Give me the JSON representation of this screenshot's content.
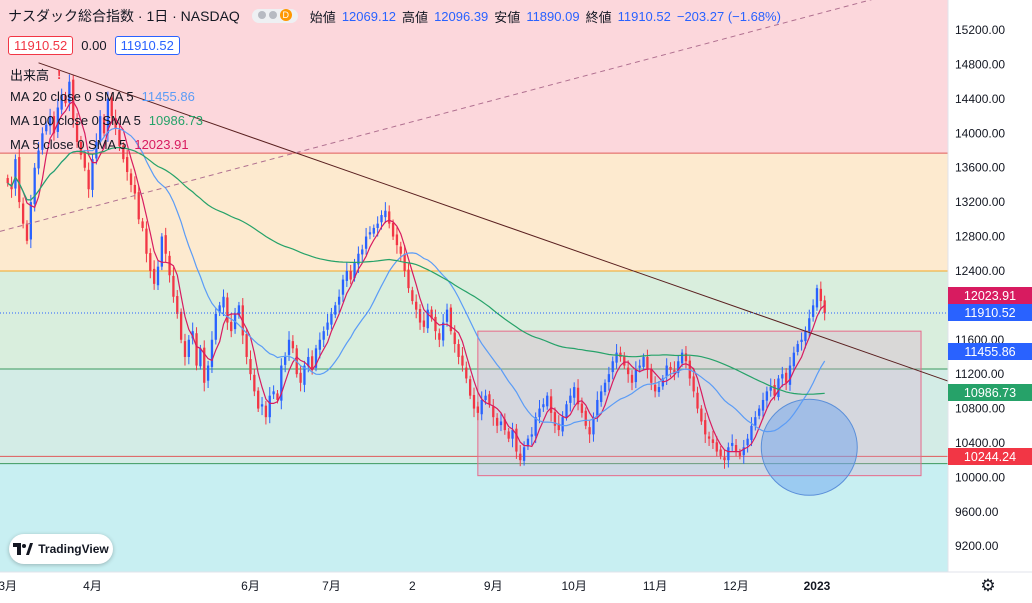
{
  "header": {
    "title": "ナスダック総合指数 · 1日 · NASDAQ",
    "badge": "D",
    "open_label": "始値",
    "open": "12069.12",
    "high_label": "高値",
    "high": "12096.39",
    "low_label": "安値",
    "low": "11890.09",
    "close_label": "終値",
    "close": "11910.52",
    "change": "−203.27 (−1.68%)"
  },
  "order_panel": {
    "sell": "11910.52",
    "spread": "0.00",
    "buy": "11910.52"
  },
  "legends": {
    "volume": "出来高",
    "volume_warning": "!",
    "ma20": {
      "label": "MA 20 close 0 SMA 5",
      "value": "11455.86",
      "color": "#5b9cf6"
    },
    "ma100": {
      "label": "MA 100 close 0 SMA 5",
      "value": "10986.73",
      "color": "#26a269"
    },
    "ma5": {
      "label": "MA 5 close 0 SMA 5",
      "value": "12023.91",
      "color": "#d81b60"
    }
  },
  "price_labels": {
    "ma5": "12023.91",
    "last": "11910.52",
    "ma20": "11455.86",
    "ma100": "10986.73",
    "level": "10244.24"
  },
  "colors": {
    "up": "#2962ff",
    "down": "#f23645",
    "zone_red": "#fcd7dc",
    "zone_orange": "#fdeacf",
    "zone_green": "#d9eedd",
    "zone_cyan": "#c8eff2"
  },
  "branding": {
    "logo_text": "TradingView"
  },
  "icons": {
    "settings": "gear-icon",
    "logo": "tradingview-logo-icon"
  },
  "chart_data": {
    "type": "candlestick",
    "symbol": "NASDAQ",
    "interval": "1日",
    "y_ticks": [
      15200,
      14800,
      14400,
      14000,
      13600,
      13200,
      12800,
      12400,
      12000,
      11600,
      11200,
      10800,
      10400,
      10000,
      9600,
      9200
    ],
    "x_ticks": [
      {
        "label": "3月",
        "t": 0
      },
      {
        "label": "4月",
        "t": 22
      },
      {
        "label": "6月",
        "t": 63
      },
      {
        "label": "7月",
        "t": 84
      },
      {
        "label": "2",
        "t": 105
      },
      {
        "label": "9月",
        "t": 126
      },
      {
        "label": "10月",
        "t": 147
      },
      {
        "label": "11月",
        "t": 168
      },
      {
        "label": "12月",
        "t": 189
      },
      {
        "label": "2023",
        "t": 210
      },
      {
        "label": "",
        "t": 231
      }
    ],
    "ylim": [
      8900,
      15550
    ],
    "xlim": [
      -2,
      244
    ],
    "zones": [
      {
        "from": 13770,
        "to": 15550,
        "color": "zone_red"
      },
      {
        "from": 12400,
        "to": 13770,
        "color": "zone_orange"
      },
      {
        "from": 11260,
        "to": 12400,
        "color": "zone_green"
      },
      {
        "from": 10160,
        "to": 11260,
        "color": "zone_green2"
      },
      {
        "from": 8900,
        "to": 10160,
        "color": "zone_cyan"
      }
    ],
    "hlines": [
      13770,
      12400,
      11260,
      10244,
      10160
    ],
    "trendline": {
      "points": [
        [
          8,
          14820
        ],
        [
          244,
          11120
        ]
      ]
    },
    "dashed_trendline": {
      "points": [
        [
          -2,
          12860
        ],
        [
          228,
          15600
        ]
      ]
    },
    "range_box": {
      "t0": 122,
      "t1": 237,
      "top": 11700,
      "bottom": 10020
    },
    "highlight_circle": {
      "t": 208,
      "price": 10350
    },
    "closes": [
      13420,
      13350,
      13700,
      13200,
      12950,
      12750,
      13200,
      13600,
      13800,
      14000,
      14100,
      14200,
      14000,
      14300,
      14450,
      14350,
      14600,
      14150,
      13900,
      13750,
      13600,
      13350,
      13700,
      13900,
      14200,
      14000,
      14400,
      14200,
      14050,
      13850,
      13700,
      13550,
      13400,
      13300,
      13000,
      12900,
      12600,
      12400,
      12250,
      12450,
      12800,
      12600,
      12350,
      12100,
      11900,
      11600,
      11400,
      11600,
      11700,
      11300,
      11500,
      11100,
      11300,
      11600,
      11900,
      12000,
      12100,
      11800,
      11700,
      11900,
      12000,
      11650,
      11400,
      11200,
      11000,
      10800,
      10850,
      10700,
      10950,
      11000,
      10900,
      11300,
      11400,
      11600,
      11500,
      11200,
      11100,
      11300,
      11400,
      11250,
      11500,
      11600,
      11700,
      11800,
      11900,
      12000,
      12100,
      12300,
      12400,
      12300,
      12500,
      12600,
      12650,
      12800,
      12850,
      12900,
      12950,
      13050,
      13100,
      12950,
      12800,
      12700,
      12600,
      12400,
      12200,
      12050,
      11950,
      11800,
      11750,
      11950,
      11850,
      11700,
      11600,
      11800,
      11950,
      11700,
      11550,
      11400,
      11300,
      11150,
      10950,
      10800,
      10750,
      10900,
      10950,
      10850,
      10700,
      10600,
      10650,
      10550,
      10450,
      10550,
      10300,
      10200,
      10350,
      10450,
      10500,
      10700,
      10800,
      10850,
      10950,
      10750,
      10600,
      10550,
      10700,
      10850,
      10950,
      11050,
      10850,
      10750,
      10600,
      10500,
      10700,
      10900,
      11000,
      11100,
      11200,
      11350,
      11450,
      11400,
      11300,
      11200,
      11100,
      11250,
      11300,
      11400,
      11250,
      11100,
      11000,
      11050,
      11150,
      11300,
      11250,
      11200,
      11350,
      11450,
      11350,
      11150,
      11000,
      10800,
      10650,
      10500,
      10450,
      10400,
      10300,
      10250,
      10200,
      10350,
      10400,
      10300,
      10250,
      10350,
      10450,
      10600,
      10700,
      10800,
      10900,
      11000,
      11050,
      10950,
      11150,
      11200,
      11100,
      11300,
      11450,
      11550,
      11600,
      11700,
      11850,
      12000,
      12200,
      12050,
      11910
    ],
    "current": {
      "close": 11910.52,
      "ma5": 12023.91,
      "ma20": 11455.86,
      "ma100": 10986.73
    }
  }
}
